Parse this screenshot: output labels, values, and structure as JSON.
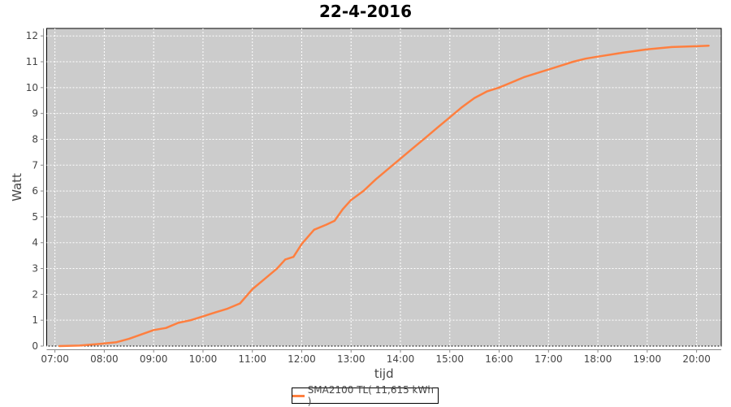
{
  "chart_data": {
    "type": "line",
    "title": "22-4-2016",
    "xlabel": "tijd",
    "ylabel": "Watt",
    "ylim": [
      0,
      12
    ],
    "xlim": [
      "06:50",
      "20:30"
    ],
    "yticks": [
      "0",
      "1",
      "2",
      "3",
      "4",
      "5",
      "6",
      "7",
      "8",
      "9",
      "10",
      "11",
      "12"
    ],
    "xticks": [
      "07:00",
      "08:00",
      "09:00",
      "10:00",
      "11:00",
      "12:00",
      "13:00",
      "14:00",
      "15:00",
      "16:00",
      "17:00",
      "18:00",
      "19:00",
      "20:00"
    ],
    "grid": true,
    "legend_position": "bottom",
    "colors": {
      "series": "#ff7f3f",
      "plot_background": "#cccccc",
      "grid": "#ffffff"
    },
    "series": [
      {
        "name": "SMA2100 TL( 11,615 kWh )",
        "x": [
          "07:05",
          "07:30",
          "08:00",
          "08:15",
          "08:30",
          "08:45",
          "09:00",
          "09:15",
          "09:30",
          "09:45",
          "10:00",
          "10:15",
          "10:30",
          "10:45",
          "11:00",
          "11:15",
          "11:30",
          "11:40",
          "11:50",
          "12:00",
          "12:15",
          "12:30",
          "12:40",
          "12:50",
          "13:00",
          "13:15",
          "13:30",
          "13:45",
          "14:00",
          "14:15",
          "14:30",
          "14:45",
          "15:00",
          "15:15",
          "15:30",
          "15:45",
          "16:00",
          "16:15",
          "16:30",
          "16:45",
          "17:00",
          "17:15",
          "17:30",
          "17:45",
          "18:00",
          "18:30",
          "19:00",
          "19:30",
          "20:00",
          "20:15"
        ],
        "values": [
          0,
          0.02,
          0.1,
          0.15,
          0.28,
          0.45,
          0.62,
          0.7,
          0.9,
          1.0,
          1.15,
          1.3,
          1.45,
          1.65,
          2.2,
          2.6,
          3.0,
          3.35,
          3.45,
          3.95,
          4.5,
          4.7,
          4.85,
          5.3,
          5.65,
          6.0,
          6.45,
          6.85,
          7.25,
          7.65,
          8.05,
          8.45,
          8.85,
          9.25,
          9.6,
          9.85,
          10.0,
          10.2,
          10.4,
          10.55,
          10.7,
          10.85,
          11.0,
          11.12,
          11.2,
          11.35,
          11.48,
          11.57,
          11.6,
          11.62
        ]
      }
    ]
  }
}
